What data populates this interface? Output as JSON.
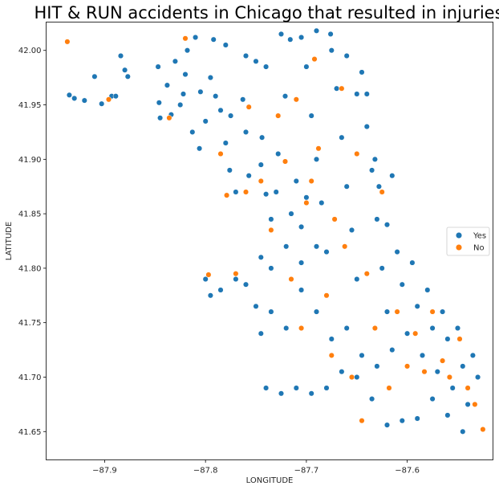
{
  "chart_data": {
    "type": "scatter",
    "title": "HIT & RUN accidents in Chicago that resulted in injuries",
    "xlabel": "LONGITUDE",
    "ylabel": "LATITUDE",
    "xlim": [
      -87.958,
      -87.515
    ],
    "ylim": [
      41.624,
      42.026
    ],
    "xticks": [
      -87.9,
      -87.8,
      -87.7,
      -87.6
    ],
    "xtick_labels": [
      "−87.9",
      "−87.8",
      "−87.7",
      "−87.6"
    ],
    "yticks": [
      41.65,
      41.7,
      41.75,
      41.8,
      41.85,
      41.9,
      41.95,
      42.0
    ],
    "ytick_labels": [
      "41.65",
      "41.70",
      "41.75",
      "41.80",
      "41.85",
      "41.90",
      "41.95",
      "42.00"
    ],
    "grid": false,
    "legend_position": "center-right",
    "series": [
      {
        "name": "Yes",
        "color": "#1f77b4",
        "points": [
          [
            -87.935,
            41.959
          ],
          [
            -87.93,
            41.956
          ],
          [
            -87.92,
            41.954
          ],
          [
            -87.91,
            41.976
          ],
          [
            -87.903,
            41.951
          ],
          [
            -87.893,
            41.958
          ],
          [
            -87.889,
            41.958
          ],
          [
            -87.884,
            41.995
          ],
          [
            -87.88,
            41.982
          ],
          [
            -87.877,
            41.976
          ],
          [
            -87.847,
            41.985
          ],
          [
            -87.846,
            41.952
          ],
          [
            -87.845,
            41.938
          ],
          [
            -87.838,
            41.968
          ],
          [
            -87.834,
            41.941
          ],
          [
            -87.825,
            41.95
          ],
          [
            -87.822,
            41.96
          ],
          [
            -87.818,
            42.0
          ],
          [
            -87.813,
            41.925
          ],
          [
            -87.806,
            41.91
          ],
          [
            -87.8,
            41.935
          ],
          [
            -87.795,
            41.975
          ],
          [
            -87.792,
            42.01
          ],
          [
            -87.785,
            41.945
          ],
          [
            -87.78,
            41.915
          ],
          [
            -87.776,
            41.89
          ],
          [
            -87.77,
            41.87
          ],
          [
            -87.763,
            41.955
          ],
          [
            -87.757,
            41.885
          ],
          [
            -87.75,
            41.99
          ],
          [
            -87.744,
            41.92
          ],
          [
            -87.74,
            41.868
          ],
          [
            -87.735,
            41.845
          ],
          [
            -87.728,
            41.905
          ],
          [
            -87.721,
            41.958
          ],
          [
            -87.716,
            42.01
          ],
          [
            -87.71,
            41.88
          ],
          [
            -87.705,
            41.838
          ],
          [
            -87.7,
            41.985
          ],
          [
            -87.695,
            41.94
          ],
          [
            -87.69,
            41.9
          ],
          [
            -87.685,
            41.86
          ],
          [
            -87.68,
            41.815
          ],
          [
            -87.676,
            42.015
          ],
          [
            -87.67,
            41.965
          ],
          [
            -87.665,
            41.92
          ],
          [
            -87.66,
            41.875
          ],
          [
            -87.655,
            41.835
          ],
          [
            -87.65,
            41.79
          ],
          [
            -87.645,
            41.98
          ],
          [
            -87.64,
            41.93
          ],
          [
            -87.635,
            41.89
          ],
          [
            -87.63,
            41.845
          ],
          [
            -87.625,
            41.8
          ],
          [
            -87.62,
            41.76
          ],
          [
            -87.615,
            41.885
          ],
          [
            -87.61,
            41.815
          ],
          [
            -87.605,
            41.785
          ],
          [
            -87.6,
            41.74
          ],
          [
            -87.595,
            41.805
          ],
          [
            -87.59,
            41.765
          ],
          [
            -87.585,
            41.72
          ],
          [
            -87.58,
            41.78
          ],
          [
            -87.575,
            41.745
          ],
          [
            -87.57,
            41.705
          ],
          [
            -87.565,
            41.76
          ],
          [
            -87.56,
            41.735
          ],
          [
            -87.555,
            41.69
          ],
          [
            -87.55,
            41.745
          ],
          [
            -87.545,
            41.71
          ],
          [
            -87.54,
            41.675
          ],
          [
            -87.535,
            41.72
          ],
          [
            -87.53,
            41.7
          ],
          [
            -87.545,
            41.65
          ],
          [
            -87.56,
            41.665
          ],
          [
            -87.575,
            41.68
          ],
          [
            -87.59,
            41.662
          ],
          [
            -87.605,
            41.66
          ],
          [
            -87.62,
            41.656
          ],
          [
            -87.635,
            41.68
          ],
          [
            -87.65,
            41.7
          ],
          [
            -87.665,
            41.705
          ],
          [
            -87.68,
            41.69
          ],
          [
            -87.695,
            41.685
          ],
          [
            -87.71,
            41.69
          ],
          [
            -87.725,
            41.685
          ],
          [
            -87.74,
            41.69
          ],
          [
            -87.745,
            41.74
          ],
          [
            -87.75,
            41.765
          ],
          [
            -87.76,
            41.785
          ],
          [
            -87.77,
            41.79
          ],
          [
            -87.785,
            41.78
          ],
          [
            -87.795,
            41.775
          ],
          [
            -87.8,
            41.79
          ],
          [
            -87.745,
            41.81
          ],
          [
            -87.735,
            41.76
          ],
          [
            -87.72,
            41.745
          ],
          [
            -87.705,
            41.78
          ],
          [
            -87.69,
            41.76
          ],
          [
            -87.675,
            41.735
          ],
          [
            -87.66,
            41.745
          ],
          [
            -87.645,
            41.72
          ],
          [
            -87.63,
            41.71
          ],
          [
            -87.615,
            41.725
          ],
          [
            -87.69,
            41.82
          ],
          [
            -87.705,
            41.805
          ],
          [
            -87.72,
            41.82
          ],
          [
            -87.735,
            41.8
          ],
          [
            -87.7,
            41.865
          ],
          [
            -87.715,
            41.85
          ],
          [
            -87.73,
            41.87
          ],
          [
            -87.745,
            41.895
          ],
          [
            -87.76,
            41.925
          ],
          [
            -87.775,
            41.94
          ],
          [
            -87.79,
            41.958
          ],
          [
            -87.805,
            41.962
          ],
          [
            -87.82,
            41.978
          ],
          [
            -87.83,
            41.99
          ],
          [
            -87.81,
            42.012
          ],
          [
            -87.78,
            42.005
          ],
          [
            -87.76,
            41.995
          ],
          [
            -87.74,
            41.985
          ],
          [
            -87.725,
            42.015
          ],
          [
            -87.705,
            42.012
          ],
          [
            -87.69,
            42.018
          ],
          [
            -87.675,
            42.0
          ],
          [
            -87.66,
            41.995
          ],
          [
            -87.65,
            41.96
          ],
          [
            -87.64,
            41.96
          ],
          [
            -87.632,
            41.9
          ],
          [
            -87.628,
            41.875
          ],
          [
            -87.62,
            41.84
          ]
        ]
      },
      {
        "name": "No",
        "color": "#ff7f0e",
        "points": [
          [
            -87.937,
            42.008
          ],
          [
            -87.896,
            41.955
          ],
          [
            -87.836,
            41.938
          ],
          [
            -87.82,
            42.011
          ],
          [
            -87.797,
            41.794
          ],
          [
            -87.779,
            41.867
          ],
          [
            -87.77,
            41.795
          ],
          [
            -87.757,
            41.948
          ],
          [
            -87.745,
            41.88
          ],
          [
            -87.735,
            41.835
          ],
          [
            -87.721,
            41.898
          ],
          [
            -87.71,
            41.955
          ],
          [
            -87.7,
            41.86
          ],
          [
            -87.692,
            41.992
          ],
          [
            -87.688,
            41.91
          ],
          [
            -87.68,
            41.775
          ],
          [
            -87.672,
            41.845
          ],
          [
            -87.665,
            41.965
          ],
          [
            -87.655,
            41.7
          ],
          [
            -87.65,
            41.905
          ],
          [
            -87.645,
            41.66
          ],
          [
            -87.64,
            41.795
          ],
          [
            -87.632,
            41.745
          ],
          [
            -87.625,
            41.87
          ],
          [
            -87.618,
            41.69
          ],
          [
            -87.61,
            41.76
          ],
          [
            -87.6,
            41.71
          ],
          [
            -87.592,
            41.74
          ],
          [
            -87.583,
            41.705
          ],
          [
            -87.575,
            41.76
          ],
          [
            -87.565,
            41.715
          ],
          [
            -87.558,
            41.7
          ],
          [
            -87.548,
            41.735
          ],
          [
            -87.54,
            41.69
          ],
          [
            -87.533,
            41.675
          ],
          [
            -87.525,
            41.652
          ],
          [
            -87.728,
            41.94
          ],
          [
            -87.715,
            41.79
          ],
          [
            -87.705,
            41.745
          ],
          [
            -87.695,
            41.88
          ],
          [
            -87.675,
            41.72
          ],
          [
            -87.662,
            41.82
          ],
          [
            -87.76,
            41.87
          ],
          [
            -87.785,
            41.905
          ]
        ]
      }
    ]
  }
}
